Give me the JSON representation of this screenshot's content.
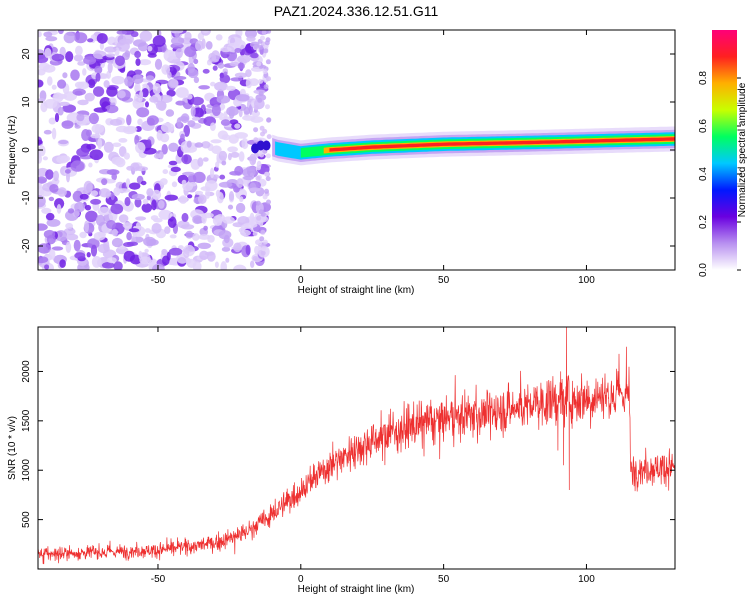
{
  "title": "PAZ1.2024.336.12.51.G11",
  "chart_data": [
    {
      "type": "heatmap",
      "xlabel": "Height of straight line (km)",
      "ylabel": "Frequency (Hz)",
      "xlim": [
        -92,
        131
      ],
      "ylim": [
        -25,
        25
      ],
      "xticks": [
        -50,
        0,
        50,
        100
      ],
      "yticks": [
        -20,
        -10,
        0,
        10,
        20
      ],
      "colorbar": {
        "label": "Normalized spectral amplitude",
        "range": [
          0,
          1
        ],
        "ticks": [
          "0.0",
          "0.2",
          "0.4",
          "0.6",
          "0.8"
        ],
        "colors": [
          "#ffffff",
          "#b890f0",
          "#6a00e0",
          "#0018ff",
          "#00c8ff",
          "#00ff60",
          "#c8ff00",
          "#ffb000",
          "#ff2020",
          "#ff0078"
        ]
      },
      "noise_region_x": [
        -92,
        -12
      ],
      "signal_track": [
        {
          "x": -12,
          "y": 1.0
        },
        {
          "x": -8,
          "y": 0.2
        },
        {
          "x": 0,
          "y": -0.6
        },
        {
          "x": 10,
          "y": 0.0
        },
        {
          "x": 25,
          "y": 0.6
        },
        {
          "x": 50,
          "y": 1.2
        },
        {
          "x": 75,
          "y": 1.5
        },
        {
          "x": 90,
          "y": 1.7
        },
        {
          "x": 110,
          "y": 2.0
        },
        {
          "x": 131,
          "y": 2.3
        }
      ]
    },
    {
      "type": "line",
      "xlabel": "Height of straight line (km)",
      "ylabel": "SNR (10 * v/v)",
      "xlim": [
        -92,
        131
      ],
      "ylim": [
        0,
        2450
      ],
      "xticks": [
        -50,
        0,
        50,
        100
      ],
      "yticks": [
        500,
        1000,
        1500,
        2000
      ],
      "color": "#ee3030",
      "series": [
        {
          "trend": [
            {
              "x": -92,
              "y": 150
            },
            {
              "x": -70,
              "y": 170
            },
            {
              "x": -50,
              "y": 190
            },
            {
              "x": -30,
              "y": 260
            },
            {
              "x": -20,
              "y": 360
            },
            {
              "x": -10,
              "y": 550
            },
            {
              "x": 0,
              "y": 800
            },
            {
              "x": 10,
              "y": 1050
            },
            {
              "x": 20,
              "y": 1230
            },
            {
              "x": 30,
              "y": 1370
            },
            {
              "x": 40,
              "y": 1450
            },
            {
              "x": 50,
              "y": 1520
            },
            {
              "x": 60,
              "y": 1560
            },
            {
              "x": 70,
              "y": 1600
            },
            {
              "x": 80,
              "y": 1660
            },
            {
              "x": 88,
              "y": 1700
            },
            {
              "x": 100,
              "y": 1740
            },
            {
              "x": 115,
              "y": 1780
            },
            {
              "x": 115.5,
              "y": 1000
            },
            {
              "x": 131,
              "y": 1040
            }
          ],
          "spikes": [
            {
              "x": 90,
              "y": 1200
            },
            {
              "x": 91,
              "y": 2000
            },
            {
              "x": 92,
              "y": 1050
            },
            {
              "x": 93,
              "y": 2450
            },
            {
              "x": 94,
              "y": 800
            },
            {
              "x": 114,
              "y": 2250
            }
          ]
        }
      ]
    }
  ]
}
